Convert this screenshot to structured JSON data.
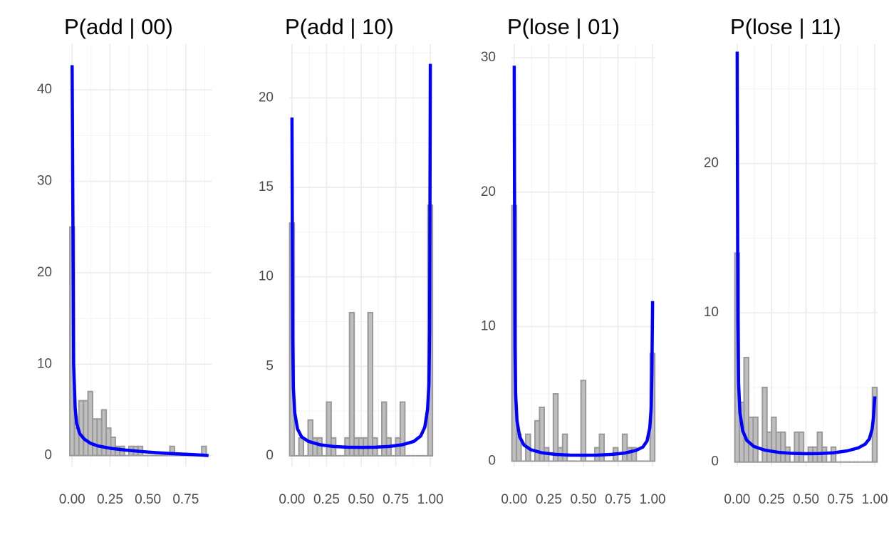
{
  "colors": {
    "density_line": "#0000ff",
    "bar_fill": "#bebebe",
    "bar_outline": "#999999",
    "grid": "#ebebeb",
    "background": "#ffffff"
  },
  "chart_data": [
    {
      "type": "bar",
      "title": "P(add | 00)",
      "xlabel": "",
      "ylabel": "",
      "xlim": [
        -0.02,
        0.92
      ],
      "ylim": [
        -1.2,
        45
      ],
      "x_ticks": [
        0,
        0.25,
        0.5,
        0.75
      ],
      "x_tick_labels": [
        "0.00",
        "0.25",
        "0.50",
        "0.75"
      ],
      "y_ticks": [
        0,
        10,
        20,
        30,
        40
      ],
      "y_tick_labels": [
        "0",
        "10",
        "20",
        "30",
        "40"
      ],
      "grid": true,
      "bin_width": 0.03,
      "bin_start": 0,
      "bin_counts": [
        25,
        3,
        6,
        6,
        7,
        4,
        4,
        5,
        3,
        2,
        1,
        1,
        0,
        1,
        1,
        1,
        0,
        0,
        0,
        0,
        0,
        0,
        1,
        0,
        0,
        0,
        0,
        0,
        0,
        1
      ],
      "density_curve": {
        "color": "#0000ff",
        "x": [
          0,
          0.01,
          0.02,
          0.03,
          0.05,
          0.08,
          0.12,
          0.17,
          0.25,
          0.35,
          0.45,
          0.55,
          0.65,
          0.75,
          0.85,
          0.9
        ],
        "y": [
          42.7,
          10,
          5.2,
          3.5,
          2.4,
          1.8,
          1.35,
          1.05,
          0.8,
          0.6,
          0.45,
          0.32,
          0.22,
          0.14,
          0.06,
          0.0
        ]
      }
    },
    {
      "type": "bar",
      "title": "P(add | 10)",
      "xlabel": "",
      "ylabel": "",
      "xlim": [
        -0.02,
        1.02
      ],
      "ylim": [
        -0.6,
        23
      ],
      "x_ticks": [
        0,
        0.25,
        0.5,
        0.75,
        1.0
      ],
      "x_tick_labels": [
        "0.00",
        "0.25",
        "0.50",
        "0.75",
        "1.00"
      ],
      "y_ticks": [
        0,
        5,
        10,
        15,
        20
      ],
      "y_tick_labels": [
        "0",
        "5",
        "10",
        "15",
        "20"
      ],
      "grid": true,
      "bin_width": 0.0333,
      "bin_start": 0,
      "bin_counts": [
        13,
        0,
        1,
        0,
        2,
        1,
        1,
        0,
        3,
        1,
        0,
        0,
        1,
        8,
        1,
        1,
        1,
        8,
        1,
        0,
        3,
        1,
        0,
        1,
        3,
        0,
        0,
        0,
        0,
        0,
        14
      ],
      "density_curve": {
        "color": "#0000ff",
        "x": [
          0,
          0.005,
          0.01,
          0.02,
          0.04,
          0.07,
          0.12,
          0.2,
          0.3,
          0.4,
          0.5,
          0.6,
          0.7,
          0.8,
          0.88,
          0.93,
          0.96,
          0.98,
          0.99,
          0.995,
          1.0
        ],
        "y": [
          18.9,
          6.5,
          3.8,
          2.4,
          1.5,
          1.05,
          0.8,
          0.62,
          0.52,
          0.48,
          0.47,
          0.48,
          0.52,
          0.62,
          0.8,
          1.1,
          1.6,
          2.6,
          4.0,
          7.0,
          21.9
        ]
      }
    },
    {
      "type": "bar",
      "title": "P(lose | 01)",
      "xlabel": "",
      "ylabel": "",
      "xlim": [
        -0.02,
        1.02
      ],
      "ylim": [
        -0.4,
        31
      ],
      "x_ticks": [
        0,
        0.25,
        0.5,
        0.75,
        1.0
      ],
      "x_tick_labels": [
        "0.00",
        "0.25",
        "0.50",
        "0.75",
        "1.00"
      ],
      "y_ticks": [
        0,
        10,
        20,
        30
      ],
      "y_tick_labels": [
        "0",
        "10",
        "20",
        "30"
      ],
      "grid": true,
      "bin_width": 0.0333,
      "bin_start": 0,
      "bin_counts": [
        19,
        2,
        0,
        2,
        0,
        3,
        4,
        1,
        0,
        5,
        1,
        2,
        0,
        0,
        0,
        6,
        0,
        0,
        1,
        2,
        0,
        0,
        1,
        0,
        2,
        1,
        1,
        0,
        0,
        0,
        8
      ],
      "density_curve": {
        "color": "#0000ff",
        "x": [
          0,
          0.005,
          0.01,
          0.02,
          0.04,
          0.07,
          0.12,
          0.2,
          0.3,
          0.4,
          0.5,
          0.6,
          0.7,
          0.8,
          0.88,
          0.93,
          0.96,
          0.98,
          0.99,
          0.995,
          1.0
        ],
        "y": [
          29.4,
          8.5,
          5.0,
          3.0,
          1.8,
          1.2,
          0.85,
          0.62,
          0.5,
          0.45,
          0.44,
          0.45,
          0.5,
          0.6,
          0.8,
          1.05,
          1.5,
          2.5,
          4.0,
          6.5,
          11.9
        ]
      }
    },
    {
      "type": "bar",
      "title": "P(lose | 11)",
      "xlabel": "",
      "ylabel": "",
      "xlim": [
        -0.02,
        1.02
      ],
      "ylim": [
        -0.3,
        28
      ],
      "x_ticks": [
        0,
        0.25,
        0.5,
        0.75,
        1.0
      ],
      "x_tick_labels": [
        "0.00",
        "0.25",
        "0.50",
        "0.75",
        "1.00"
      ],
      "y_ticks": [
        0,
        10,
        20
      ],
      "y_tick_labels": [
        "0",
        "10",
        "20"
      ],
      "grid": true,
      "bin_width": 0.0333,
      "bin_start": 0,
      "bin_counts": [
        14,
        4,
        7,
        3,
        3,
        0,
        5,
        2,
        3,
        2,
        2,
        1,
        0,
        2,
        2,
        0,
        1,
        1,
        2,
        1,
        0,
        1,
        0,
        0,
        0,
        0,
        0,
        0,
        0,
        0,
        5
      ],
      "density_curve": {
        "color": "#0000ff",
        "x": [
          0,
          0.005,
          0.01,
          0.02,
          0.04,
          0.07,
          0.12,
          0.2,
          0.3,
          0.4,
          0.5,
          0.6,
          0.7,
          0.8,
          0.88,
          0.93,
          0.96,
          0.98,
          0.99,
          1.0
        ],
        "y": [
          27.5,
          9.5,
          5.3,
          3.3,
          2.1,
          1.45,
          1.05,
          0.8,
          0.65,
          0.58,
          0.56,
          0.57,
          0.62,
          0.75,
          0.95,
          1.2,
          1.55,
          2.2,
          3.0,
          4.4
        ]
      }
    }
  ]
}
